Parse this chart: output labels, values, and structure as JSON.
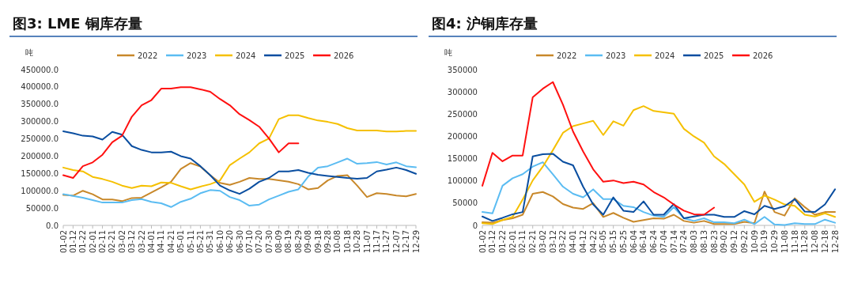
{
  "chart_data": [
    {
      "type": "line",
      "title": "图3: LME 铜库存量",
      "ylabel": "吨",
      "legend": "top",
      "grid": false,
      "categories": [
        "01-02",
        "01-12",
        "01-22",
        "02-01",
        "02-11",
        "02-21",
        "03-02",
        "03-12",
        "03-22",
        "04-01",
        "04-11",
        "04-21",
        "05-01",
        "05-11",
        "05-21",
        "05-31",
        "06-10",
        "06-20",
        "06-30",
        "07-10",
        "07-20",
        "07-30",
        "08-09",
        "08-19",
        "08-29",
        "09-08",
        "09-18",
        "09-28",
        "10-08",
        "10-18",
        "10-28",
        "11-07",
        "11-17",
        "11-27",
        "12-07",
        "12-17",
        "12-29"
      ],
      "ylim": [
        0,
        450000
      ],
      "yticks": [
        {
          "value": 0,
          "label": "0.0"
        },
        {
          "value": 50000,
          "label": "50000.0"
        },
        {
          "value": 100000,
          "label": "100000.0"
        },
        {
          "value": 150000,
          "label": "150000.0"
        },
        {
          "value": 200000,
          "label": "200000.0"
        },
        {
          "value": 250000,
          "label": "250000.0"
        },
        {
          "value": 300000,
          "label": "300000.0"
        },
        {
          "value": 350000,
          "label": "350000.0"
        },
        {
          "value": 400000,
          "label": "400000.0"
        },
        {
          "value": 450000,
          "label": "450000.0"
        }
      ],
      "series": [
        {
          "name": "2022",
          "color": "#c8882a",
          "values": [
            88000,
            86000,
            100000,
            90000,
            75000,
            75000,
            70000,
            79000,
            80000,
            95000,
            110000,
            126000,
            163000,
            180000,
            170000,
            145000,
            123000,
            117000,
            126000,
            137000,
            134000,
            134000,
            130000,
            126000,
            119000,
            104000,
            108000,
            130000,
            143000,
            145000,
            115000,
            82000,
            93000,
            91000,
            86000,
            84000,
            91000
          ]
        },
        {
          "name": "2023",
          "color": "#5bbcf2",
          "values": [
            90000,
            85000,
            80000,
            73000,
            66000,
            66000,
            66000,
            73000,
            76000,
            68000,
            64000,
            53000,
            68000,
            77000,
            93000,
            102000,
            100000,
            82000,
            73000,
            57000,
            60000,
            75000,
            86000,
            97000,
            104000,
            141000,
            167000,
            171000,
            182000,
            193000,
            178000,
            180000,
            183000,
            176000,
            182000,
            171000,
            168000
          ]
        },
        {
          "name": "2024",
          "color": "#f5c000",
          "values": [
            167000,
            160000,
            156000,
            140000,
            134000,
            126000,
            115000,
            108000,
            115000,
            113000,
            124000,
            123000,
            113000,
            104000,
            112000,
            119000,
            130000,
            174000,
            193000,
            211000,
            237000,
            251000,
            307000,
            318000,
            318000,
            310000,
            303000,
            299000,
            293000,
            281000,
            274000,
            274000,
            274000,
            271000,
            271000,
            273000,
            273000
          ]
        },
        {
          "name": "2025",
          "color": "#0a4ea0",
          "values": [
            272000,
            266000,
            259000,
            257000,
            248000,
            270000,
            262000,
            229000,
            218000,
            211000,
            211000,
            213000,
            200000,
            193000,
            171000,
            145000,
            115000,
            101000,
            91000,
            106000,
            126000,
            137000,
            156000,
            156000,
            160000,
            152000,
            146000,
            143000,
            140000,
            137000,
            135000,
            137000,
            156000,
            161000,
            167000,
            160000,
            149000
          ]
        },
        {
          "name": "2026",
          "color": "#ff1010",
          "values": [
            145000,
            137000,
            171000,
            182000,
            204000,
            240000,
            259000,
            314000,
            347000,
            362000,
            395000,
            395000,
            399000,
            399000,
            393000,
            386000,
            365000,
            347000,
            321000,
            304000,
            285000,
            251000,
            211000,
            237000,
            237000,
            null,
            null,
            null,
            null,
            null,
            null,
            null,
            null,
            null,
            null,
            null,
            null
          ]
        }
      ]
    },
    {
      "type": "line",
      "title": "图4: 沪铜库存量",
      "ylabel": "吨",
      "legend": "top",
      "grid": false,
      "categories": [
        "01-02",
        "01-12",
        "01-22",
        "02-01",
        "02-11",
        "02-21",
        "03-02",
        "03-12",
        "03-22",
        "04-01",
        "04-12",
        "04-22",
        "05-05",
        "05-15",
        "05-25",
        "06-04",
        "06-14",
        "06-24",
        "07-04",
        "07-14",
        "07-24",
        "08-03",
        "08-13",
        "08-23",
        "09-02",
        "09-12",
        "09-22",
        "10-09",
        "10-19",
        "10-29",
        "11-08",
        "11-18",
        "11-28",
        "12-08",
        "12-18",
        "12-28"
      ],
      "ylim": [
        0,
        350000
      ],
      "yticks": [
        0,
        50000,
        100000,
        150000,
        200000,
        250000,
        300000,
        350000
      ],
      "series": [
        {
          "name": "2022",
          "color": "#c8882a",
          "values": [
            7000,
            6000,
            12000,
            16000,
            24000,
            71000,
            75000,
            65000,
            48000,
            40000,
            37000,
            50000,
            19000,
            28000,
            17000,
            8000,
            12000,
            16000,
            15000,
            24000,
            10000,
            6000,
            10000,
            3000,
            3000,
            3000,
            8000,
            5000,
            76000,
            30000,
            22000,
            61000,
            41000,
            24000,
            30000,
            30000
          ]
        },
        {
          "name": "2023",
          "color": "#5bbcf2",
          "values": [
            30000,
            27000,
            89000,
            106000,
            115000,
            132000,
            142000,
            115000,
            87000,
            71000,
            63000,
            81000,
            59000,
            59000,
            44000,
            41000,
            30000,
            22000,
            19000,
            41000,
            16000,
            10000,
            16000,
            7000,
            7000,
            5000,
            13000,
            3000,
            19000,
            2000,
            1000,
            5000,
            3000,
            3000,
            13000,
            6000
          ]
        },
        {
          "name": "2024",
          "color": "#f5c000",
          "values": [
            5000,
            3000,
            12000,
            19000,
            58000,
            101000,
            132000,
            169000,
            208000,
            223000,
            229000,
            235000,
            203000,
            234000,
            224000,
            259000,
            268000,
            257000,
            254000,
            251000,
            217000,
            200000,
            186000,
            155000,
            138000,
            115000,
            92000,
            53000,
            67000,
            58000,
            47000,
            44000,
            24000,
            20000,
            27000,
            19000
          ]
        },
        {
          "name": "2025",
          "color": "#0a4ea0",
          "values": [
            20000,
            10000,
            17000,
            25000,
            30000,
            155000,
            160000,
            161000,
            143000,
            135000,
            87000,
            47000,
            24000,
            63000,
            33000,
            30000,
            54000,
            24000,
            24000,
            48000,
            16000,
            20000,
            24000,
            24000,
            19000,
            19000,
            32000,
            25000,
            44000,
            37000,
            43000,
            59000,
            31000,
            30000,
            47000,
            81000
          ]
        },
        {
          "name": "2026",
          "color": "#ff1010",
          "values": [
            89000,
            163000,
            144000,
            157000,
            157000,
            288000,
            307000,
            322000,
            271000,
            211000,
            166000,
            126000,
            98000,
            101000,
            95000,
            98000,
            92000,
            75000,
            63000,
            47000,
            33000,
            25000,
            24000,
            40000,
            null,
            null,
            null,
            null,
            null,
            null,
            null,
            null,
            null,
            null,
            null,
            null
          ]
        }
      ]
    }
  ]
}
